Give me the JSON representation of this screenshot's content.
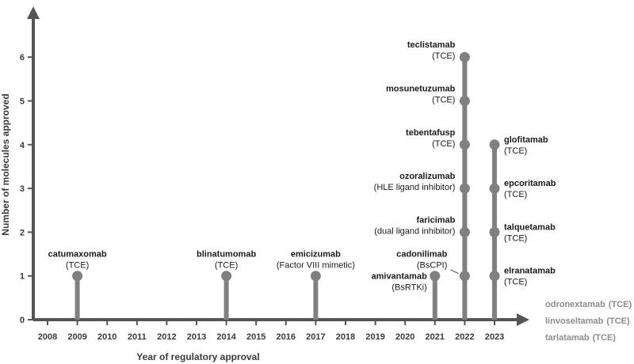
{
  "chart_data": {
    "type": "lollipop",
    "xlabel": "Year of regulatory approval",
    "ylabel": "Number of molecules approved",
    "xlim": [
      2008,
      2023
    ],
    "ylim": [
      0,
      6
    ],
    "x_ticks": [
      2008,
      2009,
      2010,
      2011,
      2012,
      2013,
      2014,
      2015,
      2016,
      2017,
      2018,
      2019,
      2020,
      2021,
      2022,
      2023
    ],
    "y_ticks": [
      0,
      1,
      2,
      3,
      4,
      5,
      6
    ],
    "colors": {
      "stem": "#808080",
      "axis": "#555555",
      "text": "#1a1a1a",
      "pending": "#8c8c8c"
    },
    "approvals": [
      {
        "year": 2009,
        "count": 1,
        "molecules": [
          {
            "name": "catumaxomab",
            "type": "(TCE)"
          }
        ]
      },
      {
        "year": 2014,
        "count": 1,
        "molecules": [
          {
            "name": "blinatumomab",
            "type": "(TCE)"
          }
        ]
      },
      {
        "year": 2017,
        "count": 1,
        "molecules": [
          {
            "name": "emicizumab",
            "type": "(Factor VIII mimetic)"
          }
        ]
      },
      {
        "year": 2021,
        "count": 1,
        "molecules": [
          {
            "name": "amivantamab",
            "type": "(BsRTKi)"
          }
        ]
      },
      {
        "year": 2022,
        "count": 6,
        "molecules": [
          {
            "name": "cadonilimab",
            "type": "(BsCPI)"
          },
          {
            "name": "faricimab",
            "type": "(dual ligand inhibitor)"
          },
          {
            "name": "ozoralizumab",
            "type": "(HLE ligand inhibitor)"
          },
          {
            "name": "tebentafusp",
            "type": "(TCE)"
          },
          {
            "name": "mosunetuzumab",
            "type": "(TCE)"
          },
          {
            "name": "teclistamab",
            "type": "(TCE)"
          }
        ]
      },
      {
        "year": 2023,
        "count": 4,
        "molecules": [
          {
            "name": "elranatamab",
            "type": "(TCE)"
          },
          {
            "name": "talquetamab",
            "type": "(TCE)"
          },
          {
            "name": "epcoritamab",
            "type": "(TCE)"
          },
          {
            "name": "glofitamab",
            "type": "(TCE)"
          }
        ]
      }
    ],
    "pending": [
      {
        "name": "odronextamab",
        "type": "(TCE)"
      },
      {
        "name": "linvoseltamab",
        "type": "(TCE)"
      },
      {
        "name": "tarlatamab",
        "type": "(TCE)"
      }
    ]
  }
}
